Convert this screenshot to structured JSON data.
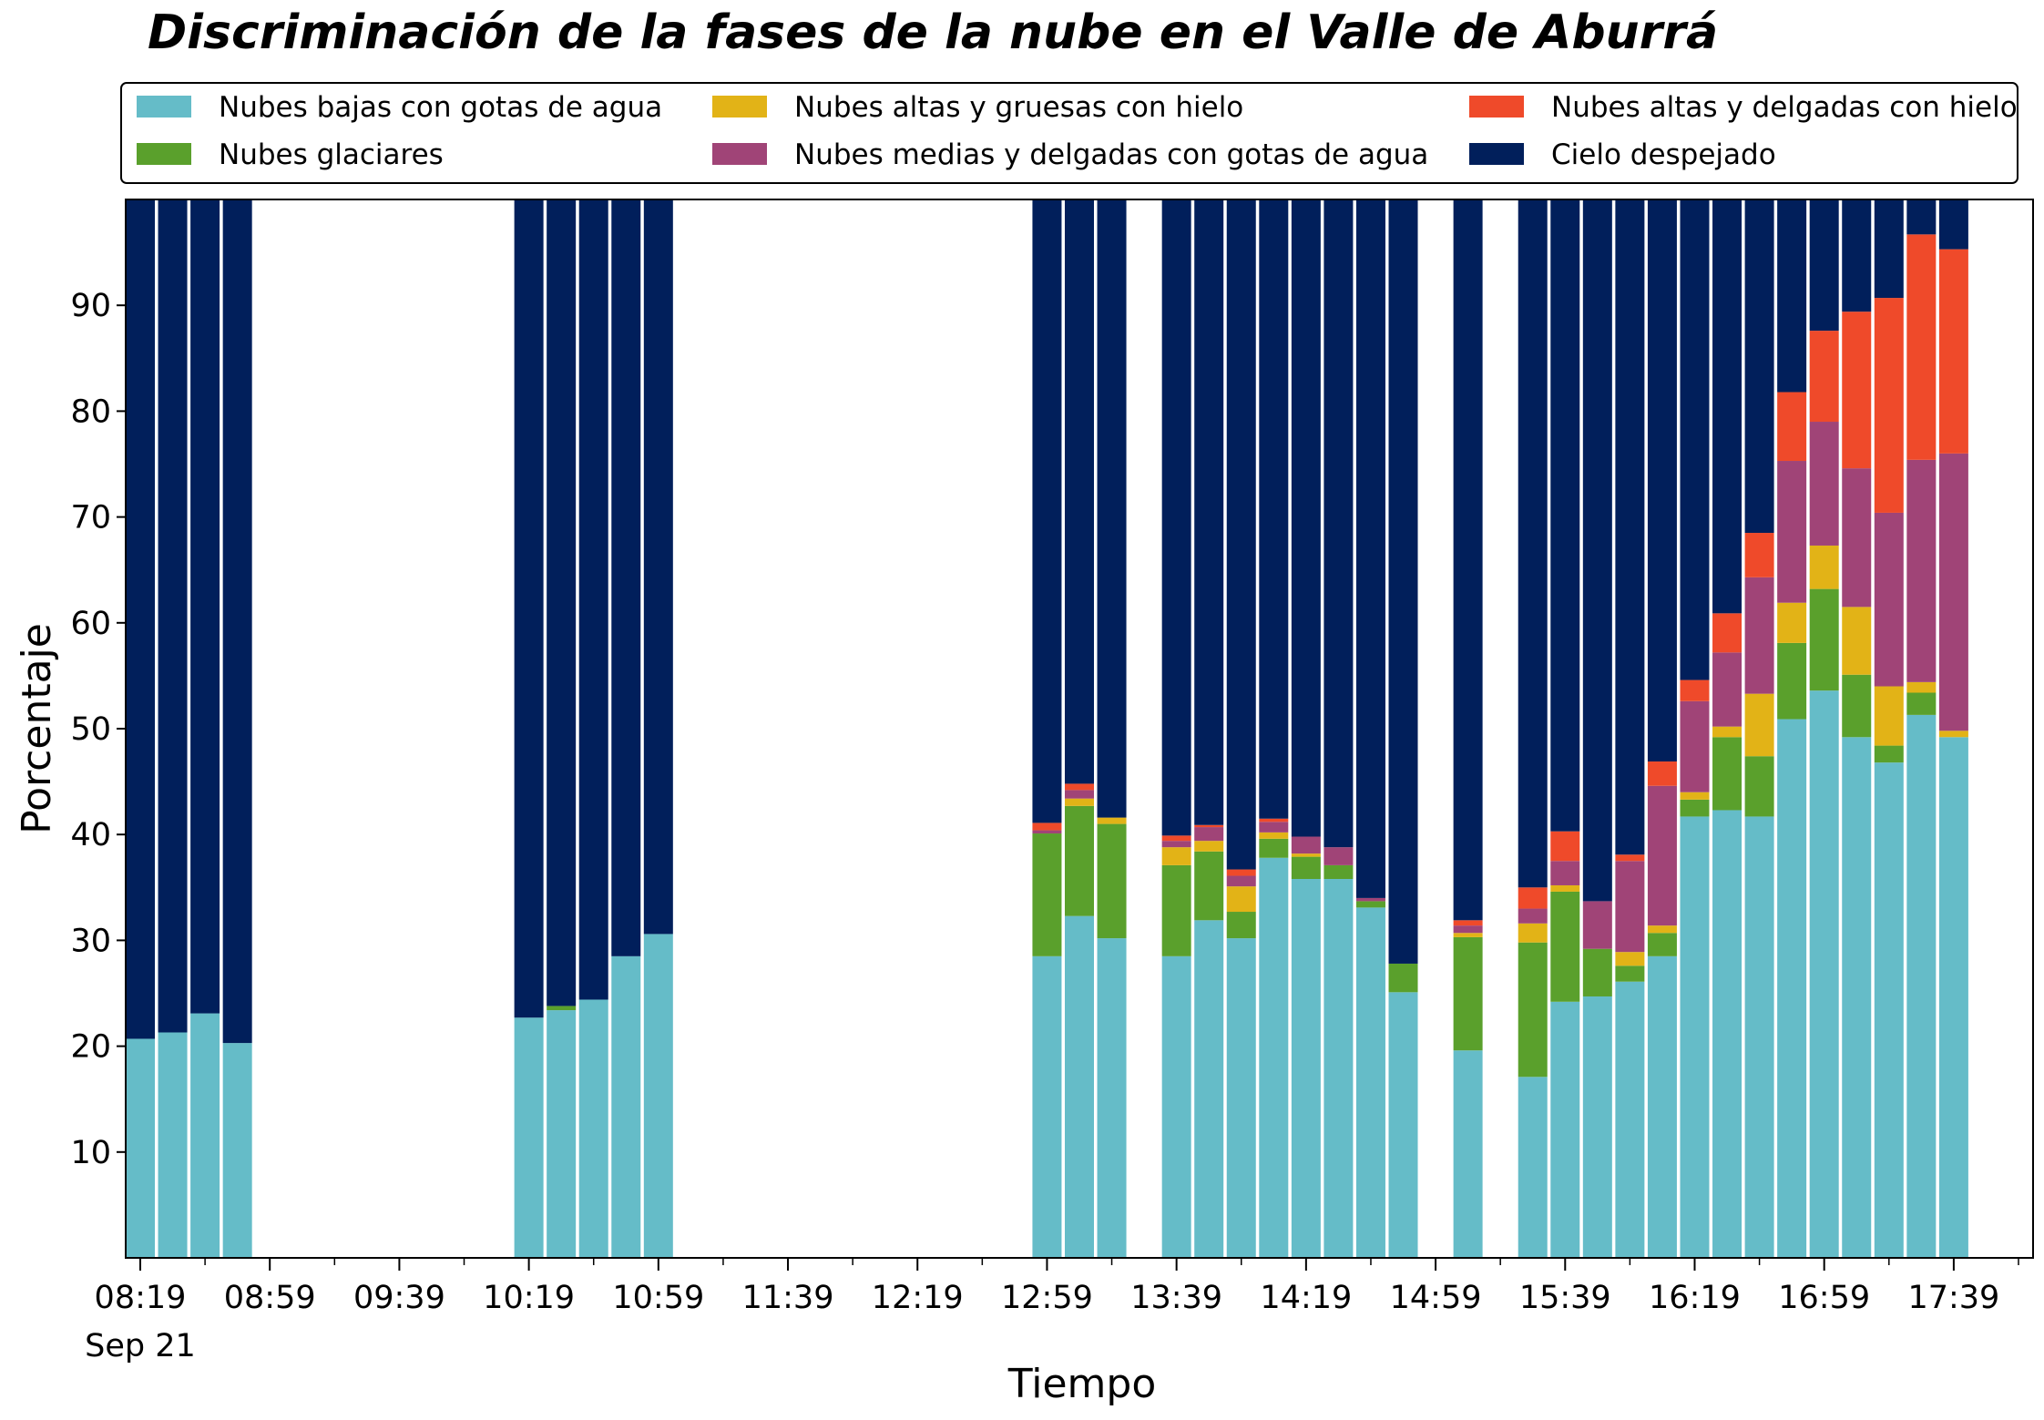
{
  "chart_data": {
    "type": "bar",
    "stacked": true,
    "title": "Discriminación de la fases de la nube en el Valle de Aburrá",
    "xlabel": "Tiempo",
    "ylabel": "Porcentaje",
    "ylim": [
      0,
      100
    ],
    "yticks": [
      10,
      20,
      30,
      40,
      50,
      60,
      70,
      80,
      90
    ],
    "xticks": [
      "08:19",
      "08:59",
      "09:39",
      "10:19",
      "10:59",
      "11:39",
      "12:19",
      "12:59",
      "13:39",
      "14:19",
      "14:59",
      "15:39",
      "16:19",
      "16:59",
      "17:39"
    ],
    "x_date_label": "Sep 21",
    "x_start": "08:19",
    "x_end": "17:59",
    "bar_width_minutes": 9,
    "grid": false,
    "legend_placement": "top",
    "x": [
      "08:19",
      "08:29",
      "08:39",
      "08:49",
      "10:19",
      "10:29",
      "10:39",
      "10:49",
      "10:59",
      "12:59",
      "13:09",
      "13:19",
      "13:39",
      "13:49",
      "13:59",
      "14:09",
      "14:19",
      "14:29",
      "14:39",
      "14:49",
      "15:09",
      "15:29",
      "15:39",
      "15:49",
      "15:59",
      "16:09",
      "16:19",
      "16:29",
      "16:39",
      "16:49",
      "16:59",
      "17:09",
      "17:19",
      "17:29",
      "17:39"
    ],
    "series": [
      {
        "name": "Nubes bajas con gotas de agua",
        "color": "#65bcc8",
        "values": [
          20.7,
          21.3,
          23.1,
          20.3,
          22.7,
          23.4,
          24.4,
          28.5,
          30.6,
          28.5,
          32.3,
          30.2,
          28.5,
          31.9,
          30.2,
          37.8,
          35.8,
          35.8,
          33.1,
          25.1,
          19.6,
          17.1,
          24.2,
          24.7,
          26.1,
          28.5,
          41.7,
          42.3,
          41.7,
          50.9,
          53.6,
          49.2,
          46.8,
          51.3,
          49.2
        ]
      },
      {
        "name": "Nubes glaciares",
        "color": "#5aa02c",
        "values": [
          0,
          0,
          0,
          0,
          0,
          0.4,
          0,
          0,
          0,
          11.6,
          10.4,
          10.8,
          8.6,
          6.5,
          2.5,
          1.8,
          2.1,
          1.3,
          0.6,
          2.7,
          10.7,
          12.7,
          10.4,
          4.5,
          1.5,
          2.2,
          1.6,
          6.9,
          5.7,
          7.2,
          9.6,
          5.9,
          1.6,
          2.1,
          0
        ]
      },
      {
        "name": "Nubes altas y gruesas con hielo",
        "color": "#e2b317",
        "values": [
          0,
          0,
          0,
          0,
          0,
          0,
          0,
          0,
          0,
          0,
          0.7,
          0.6,
          1.7,
          1.0,
          2.4,
          0.6,
          0.3,
          0,
          0,
          0,
          0.4,
          1.8,
          0.6,
          0,
          1.3,
          0.7,
          0.7,
          1.0,
          5.9,
          3.8,
          4.1,
          6.4,
          5.6,
          1.0,
          0.6
        ]
      },
      {
        "name": "Nubes medias y delgadas con gotas de agua",
        "color": "#a04477",
        "values": [
          0,
          0,
          0,
          0,
          0,
          0,
          0,
          0,
          0,
          0.3,
          0.8,
          0,
          0.6,
          1.3,
          1.0,
          1.0,
          1.6,
          1.7,
          0.3,
          0,
          0.7,
          1.4,
          2.3,
          4.5,
          8.6,
          13.2,
          8.6,
          7.0,
          11.0,
          13.4,
          11.7,
          13.1,
          16.4,
          21.0,
          26.2
        ]
      },
      {
        "name": "Nubes altas y delgadas con hielo",
        "color": "#ef4a2a",
        "values": [
          0,
          0,
          0,
          0,
          0,
          0,
          0,
          0,
          0,
          0.7,
          0.6,
          0,
          0.5,
          0.2,
          0.6,
          0.3,
          0,
          0,
          0,
          0,
          0.5,
          2.0,
          2.8,
          0,
          0.6,
          2.3,
          2.0,
          3.7,
          4.2,
          6.5,
          8.6,
          14.8,
          20.3,
          21.3,
          19.3
        ]
      },
      {
        "name": "Cielo despejado",
        "color": "#011f5b",
        "values": [
          79.3,
          78.7,
          76.9,
          79.7,
          77.3,
          76.2,
          75.6,
          71.5,
          69.4,
          58.9,
          55.2,
          58.4,
          60.1,
          59.1,
          63.3,
          58.5,
          60.2,
          61.2,
          66.0,
          72.2,
          68.1,
          65.0,
          59.7,
          66.3,
          61.9,
          53.1,
          45.4,
          39.1,
          31.5,
          18.2,
          12.4,
          10.6,
          9.3,
          3.3,
          4.7
        ]
      }
    ]
  }
}
